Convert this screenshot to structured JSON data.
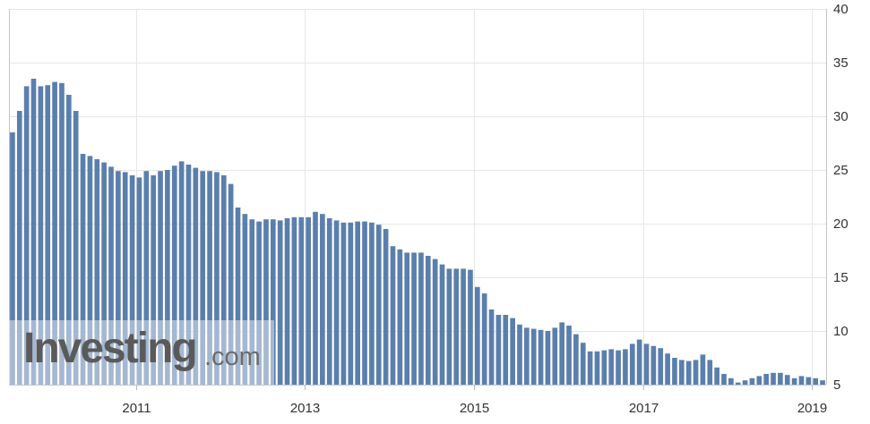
{
  "chart_data": {
    "type": "bar",
    "title": "",
    "xlabel": "",
    "ylabel": "",
    "ylim": [
      5,
      40
    ],
    "y_ticks": [
      "5",
      "10",
      "15",
      "20",
      "25",
      "30",
      "35",
      "40"
    ],
    "x_ticks": [
      "2011",
      "2013",
      "2015",
      "2017",
      "2019"
    ],
    "x_ticks_dates": [
      "2011-01",
      "2013-01",
      "2015-01",
      "2017-01",
      "2019-01"
    ],
    "grid": true,
    "y_axis_side": "right",
    "bar_color": "#5b7fad",
    "first_period": "2009-07",
    "values": [
      28.5,
      30.5,
      32.8,
      33.5,
      32.8,
      32.9,
      33.2,
      33.1,
      32.0,
      30.5,
      26.5,
      26.3,
      26.0,
      25.7,
      25.3,
      24.9,
      24.8,
      24.5,
      24.3,
      24.9,
      24.5,
      24.9,
      25.0,
      25.4,
      25.8,
      25.5,
      25.2,
      24.9,
      24.9,
      24.8,
      24.5,
      23.7,
      21.5,
      20.9,
      20.4,
      20.2,
      20.4,
      20.4,
      20.3,
      20.5,
      20.6,
      20.6,
      20.6,
      21.1,
      20.9,
      20.5,
      20.3,
      20.1,
      20.1,
      20.2,
      20.2,
      20.1,
      19.9,
      19.5,
      17.9,
      17.6,
      17.3,
      17.3,
      17.3,
      17.0,
      16.7,
      16.2,
      15.8,
      15.8,
      15.8,
      15.7,
      14.1,
      13.5,
      12.0,
      11.5,
      11.5,
      11.2,
      10.6,
      10.3,
      10.2,
      10.1,
      10.0,
      10.3,
      10.8,
      10.5,
      9.7,
      8.9,
      8.1,
      8.1,
      8.2,
      8.3,
      8.2,
      8.3,
      8.8,
      9.2,
      8.8,
      8.6,
      8.4,
      7.9,
      7.5,
      7.3,
      7.2,
      7.3,
      7.8,
      7.3,
      6.6,
      6.0,
      5.6,
      5.2,
      5.4,
      5.6,
      5.8,
      6.0,
      6.1,
      6.1,
      5.9,
      5.6,
      5.8,
      5.7,
      5.6,
      5.4
    ]
  },
  "watermark": {
    "brand": "Investing",
    "suffix": ".com"
  }
}
